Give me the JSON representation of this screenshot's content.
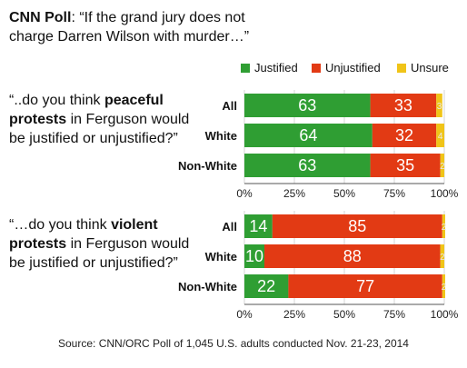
{
  "title": {
    "bold": "CNN Poll",
    "text": ": “If the grand jury does not charge Darren Wilson with murder…”"
  },
  "colors": {
    "justified": "#2f9e33",
    "unjustified": "#e23a14",
    "unsure": "#f0c418"
  },
  "chart_data": [
    {
      "type": "bar",
      "orientation": "horizontal",
      "stacked": true,
      "question": {
        "prefix": "“..do you think ",
        "bold": "peaceful protests",
        "suffix": " in Ferguson would be justified or unjustified?”"
      },
      "categories": [
        "All",
        "White",
        "Non-White"
      ],
      "series": [
        {
          "name": "Justified",
          "values": [
            63,
            64,
            63
          ]
        },
        {
          "name": "Unjustified",
          "values": [
            33,
            32,
            35
          ]
        },
        {
          "name": "Unsure",
          "values": [
            3,
            4,
            2
          ]
        }
      ],
      "xlim": [
        0,
        100
      ],
      "xticks": [
        "0%",
        "25%",
        "50%",
        "75%",
        "100%"
      ],
      "legend": "top"
    },
    {
      "type": "bar",
      "orientation": "horizontal",
      "stacked": true,
      "question": {
        "prefix": "“…do you think ",
        "bold": "violent protests",
        "suffix": " in Ferguson would be justified or unjustified?”"
      },
      "categories": [
        "All",
        "White",
        "Non-White"
      ],
      "series": [
        {
          "name": "Justified",
          "values": [
            14,
            10,
            22
          ]
        },
        {
          "name": "Unjustified",
          "values": [
            85,
            88,
            77
          ]
        },
        {
          "name": "Unsure",
          "values": [
            2,
            2,
            2
          ]
        }
      ],
      "xlim": [
        0,
        100
      ],
      "xticks": [
        "0%",
        "25%",
        "50%",
        "75%",
        "100%"
      ]
    }
  ],
  "legend": {
    "justified": "Justified",
    "unjustified": "Unjustified",
    "unsure": "Unsure"
  },
  "source": "Source: CNN/ORC Poll of 1,045 U.S. adults conducted Nov. 21-23, 2014"
}
